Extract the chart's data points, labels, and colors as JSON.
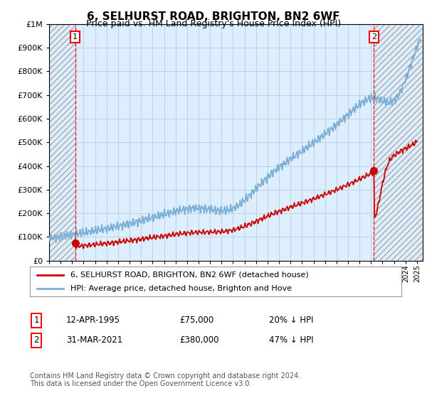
{
  "title": "6, SELHURST ROAD, BRIGHTON, BN2 6WF",
  "subtitle": "Price paid vs. HM Land Registry's House Price Index (HPI)",
  "ylim": [
    0,
    1000000
  ],
  "yticks": [
    0,
    100000,
    200000,
    300000,
    400000,
    500000,
    600000,
    700000,
    800000,
    900000,
    1000000
  ],
  "ytick_labels": [
    "£0",
    "£100K",
    "£200K",
    "£300K",
    "£400K",
    "£500K",
    "£600K",
    "£700K",
    "£800K",
    "£900K",
    "£1M"
  ],
  "xlim_start": 1993.0,
  "xlim_end": 2025.5,
  "hpi_color": "#7aaed4",
  "price_color": "#cc0000",
  "plot_bg_color": "#ddeeff",
  "transaction1_x": 1995.27,
  "transaction1_y": 75000,
  "transaction2_x": 2021.25,
  "transaction2_y": 380000,
  "hatch_left_start": 1993.0,
  "hatch_left_end": 1995.27,
  "hatch_right_start": 2021.25,
  "hatch_right_end": 2025.5,
  "legend_line1": "6, SELHURST ROAD, BRIGHTON, BN2 6WF (detached house)",
  "legend_line2": "HPI: Average price, detached house, Brighton and Hove",
  "annotation1_num": "1",
  "annotation1_date": "12-APR-1995",
  "annotation1_price": "£75,000",
  "annotation1_hpi": "20% ↓ HPI",
  "annotation2_num": "2",
  "annotation2_date": "31-MAR-2021",
  "annotation2_price": "£380,000",
  "annotation2_hpi": "47% ↓ HPI",
  "footer": "Contains HM Land Registry data © Crown copyright and database right 2024.\nThis data is licensed under the Open Government Licence v3.0.",
  "background_color": "#ffffff",
  "grid_color": "#bbccdd"
}
